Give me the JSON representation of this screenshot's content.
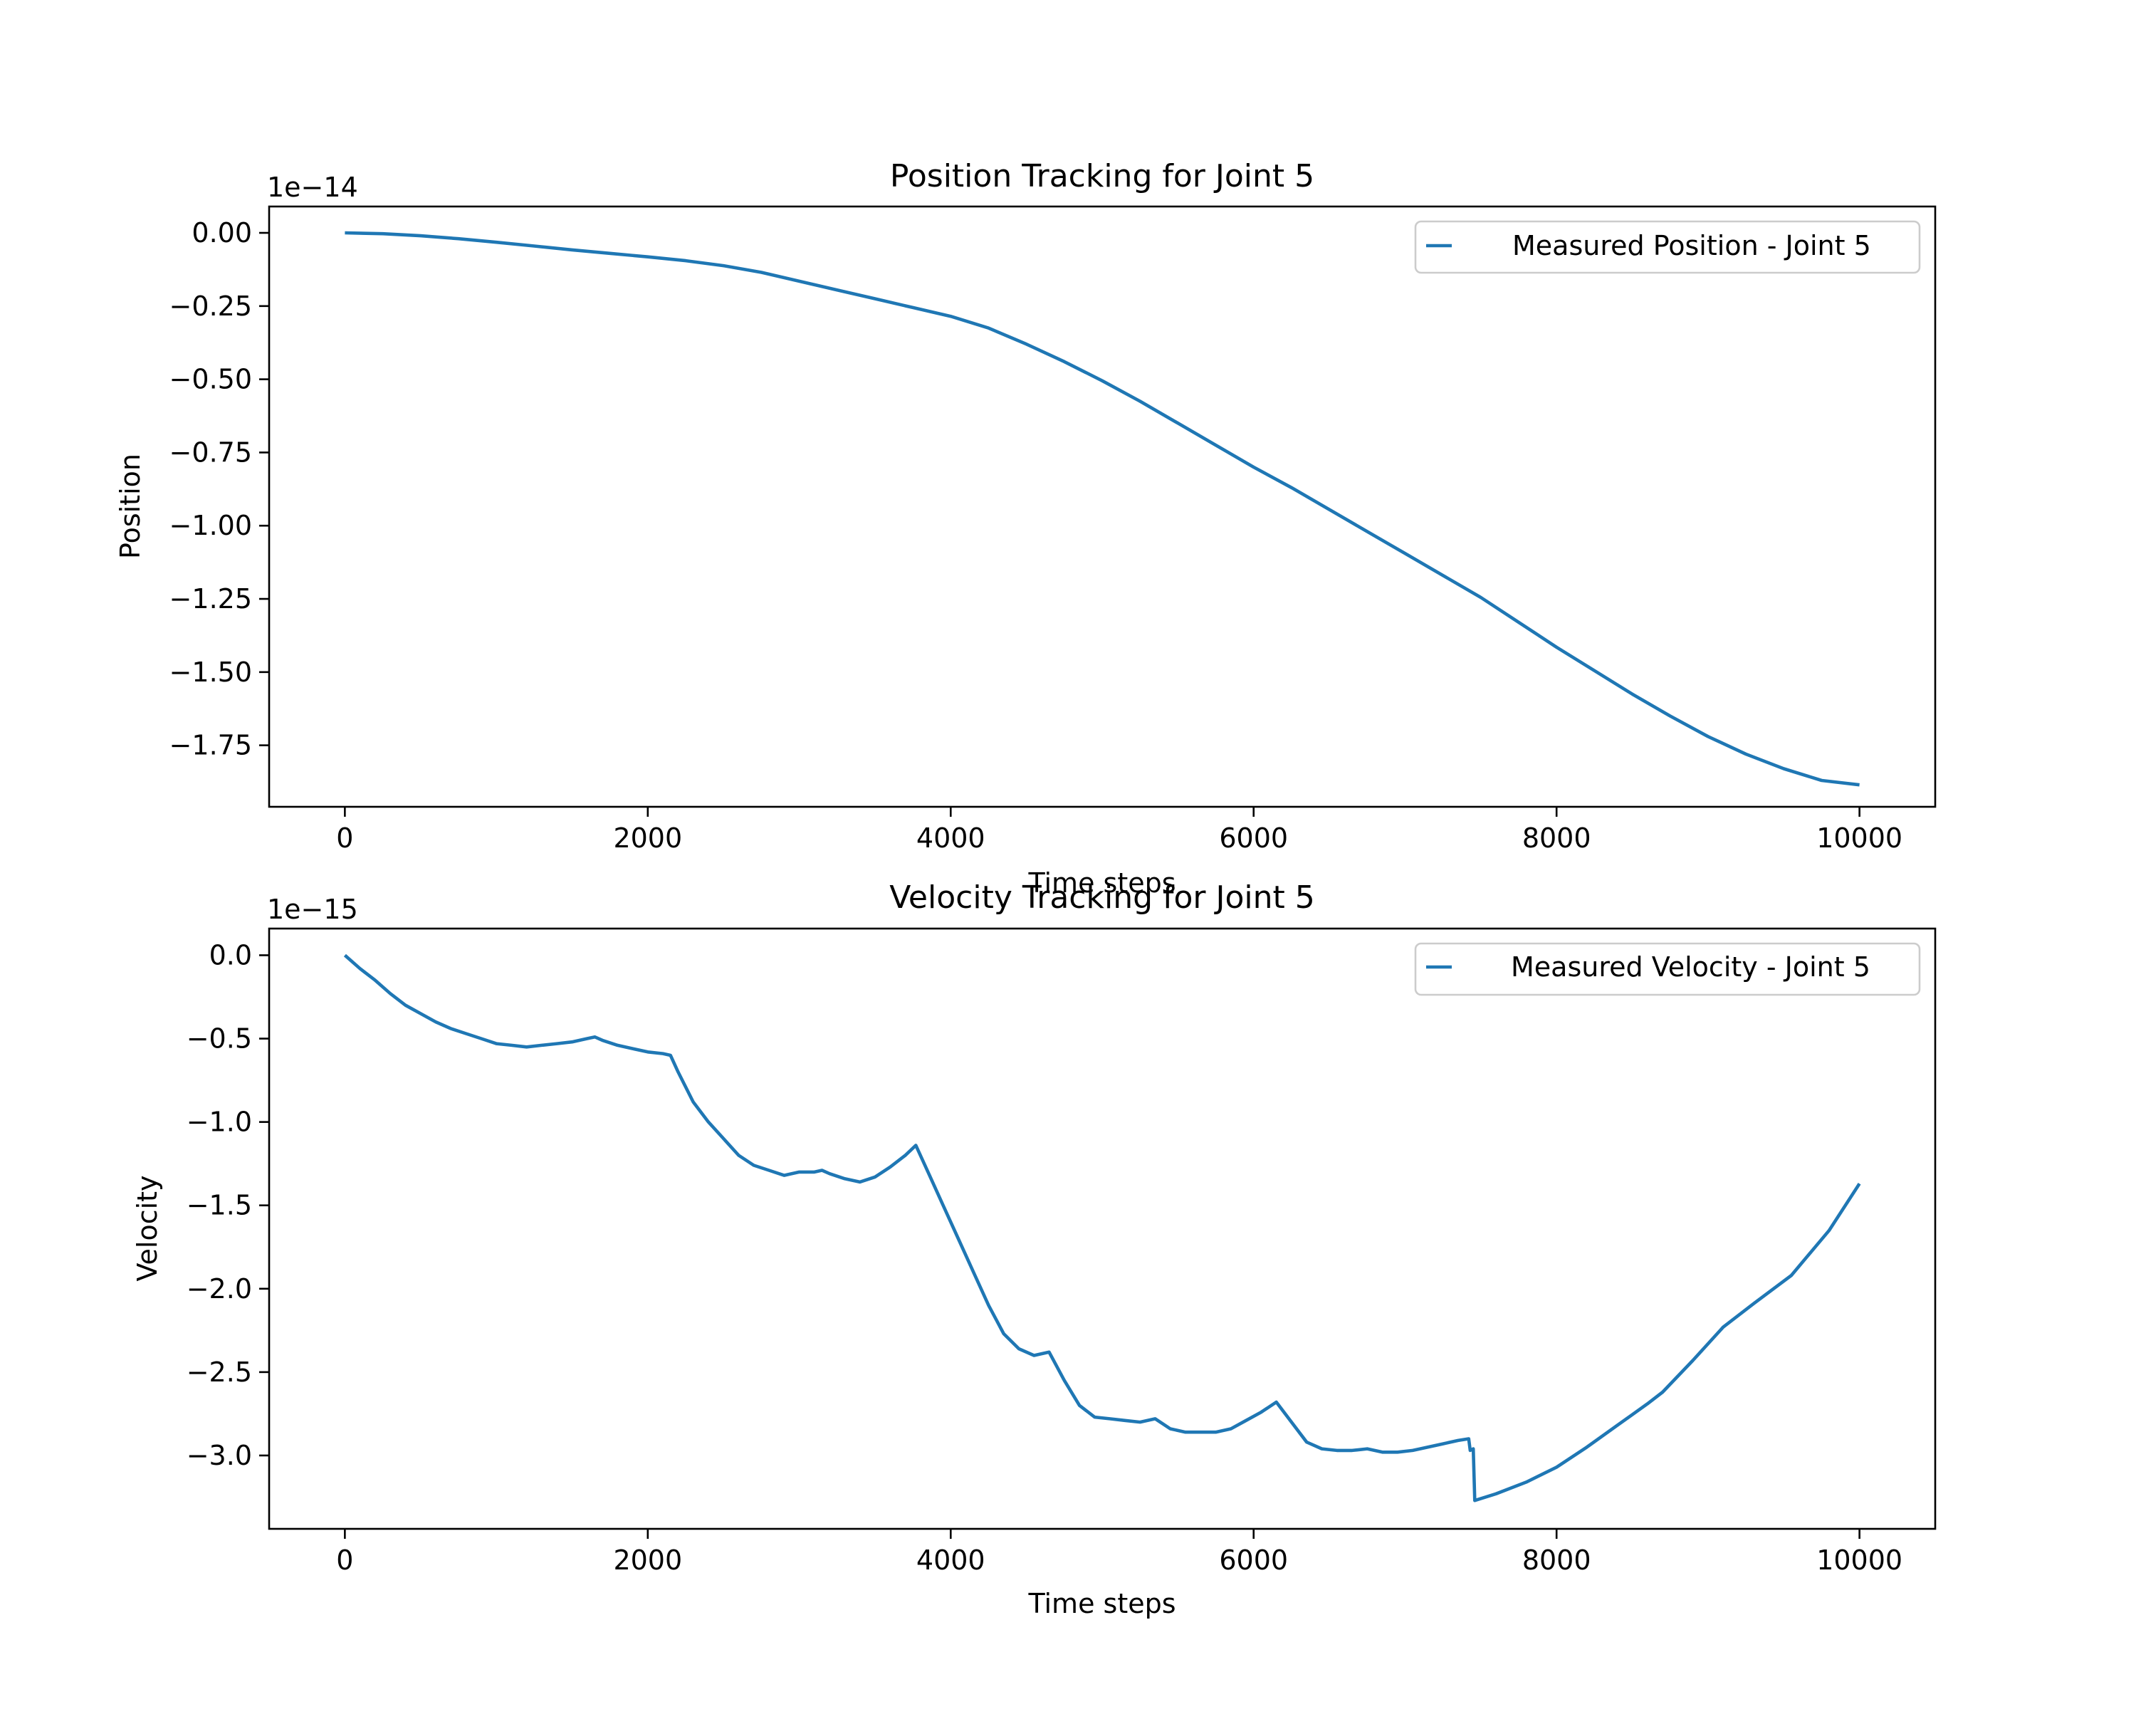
{
  "colors": {
    "series": "#1f77b4",
    "axes": "#000000",
    "legend_border": "#cccccc"
  },
  "chart_data": [
    {
      "type": "line",
      "title": "Position Tracking for Joint 5",
      "xlabel": "Time steps",
      "ylabel": "Position",
      "offset_label": "1e−14",
      "scale_exponent": -14,
      "legend_position": "top-right",
      "grid": false,
      "xlim": [
        -500,
        10500
      ],
      "ylim": [
        -1.96,
        0.09
      ],
      "x_ticks": [
        0,
        2000,
        4000,
        6000,
        8000,
        10000
      ],
      "x_tick_labels": [
        "0",
        "2000",
        "4000",
        "6000",
        "8000",
        "10000"
      ],
      "y_ticks": [
        0,
        -0.25,
        -0.5,
        -0.75,
        -1.0,
        -1.25,
        -1.5,
        -1.75
      ],
      "y_tick_labels": [
        "0.00",
        "−0.25",
        "−0.50",
        "−0.75",
        "−1.00",
        "−1.25",
        "−1.50",
        "−1.75"
      ],
      "series": [
        {
          "name": "Measured Position - Joint 5",
          "x": [
            0,
            250,
            500,
            750,
            1000,
            1250,
            1500,
            1750,
            2000,
            2250,
            2500,
            2750,
            3000,
            3250,
            3500,
            3750,
            4000,
            4250,
            4500,
            4750,
            5000,
            5250,
            5500,
            5750,
            6000,
            6250,
            6500,
            6750,
            7000,
            7250,
            7500,
            7750,
            8000,
            8250,
            8500,
            8750,
            9000,
            9250,
            9500,
            9750,
            10000
          ],
          "y": [
            0.0,
            -0.003,
            -0.01,
            -0.02,
            -0.032,
            -0.045,
            -0.058,
            -0.07,
            -0.082,
            -0.095,
            -0.112,
            -0.135,
            -0.165,
            -0.195,
            -0.225,
            -0.255,
            -0.285,
            -0.325,
            -0.38,
            -0.44,
            -0.505,
            -0.575,
            -0.65,
            -0.725,
            -0.8,
            -0.87,
            -0.945,
            -1.02,
            -1.095,
            -1.17,
            -1.245,
            -1.33,
            -1.415,
            -1.495,
            -1.575,
            -1.65,
            -1.72,
            -1.78,
            -1.83,
            -1.87,
            -1.885
          ]
        }
      ]
    },
    {
      "type": "line",
      "title": "Velocity Tracking for Joint 5",
      "xlabel": "Time steps",
      "ylabel": "Velocity",
      "offset_label": "1e−15",
      "scale_exponent": -15,
      "legend_position": "top-right",
      "grid": false,
      "xlim": [
        -500,
        10500
      ],
      "ylim": [
        -3.44,
        0.16
      ],
      "x_ticks": [
        0,
        2000,
        4000,
        6000,
        8000,
        10000
      ],
      "x_tick_labels": [
        "0",
        "2000",
        "4000",
        "6000",
        "8000",
        "10000"
      ],
      "y_ticks": [
        0,
        -0.5,
        -1.0,
        -1.5,
        -2.0,
        -2.5,
        -3.0
      ],
      "y_tick_labels": [
        "0.0",
        "−0.5",
        "−1.0",
        "−1.5",
        "−2.0",
        "−2.5",
        "−3.0"
      ],
      "series": [
        {
          "name": "Measured Velocity - Joint 5",
          "x": [
            0,
            100,
            200,
            300,
            400,
            500,
            600,
            700,
            800,
            900,
            1000,
            1100,
            1200,
            1300,
            1400,
            1500,
            1600,
            1650,
            1700,
            1800,
            1900,
            2000,
            2100,
            2150,
            2200,
            2300,
            2400,
            2500,
            2600,
            2700,
            2800,
            2900,
            3000,
            3100,
            3150,
            3200,
            3300,
            3400,
            3500,
            3600,
            3700,
            3770,
            3850,
            3950,
            4050,
            4150,
            4250,
            4350,
            4450,
            4550,
            4650,
            4750,
            4850,
            4950,
            5050,
            5150,
            5250,
            5350,
            5450,
            5550,
            5650,
            5750,
            5850,
            5950,
            6050,
            6150,
            6250,
            6350,
            6450,
            6550,
            6650,
            6750,
            6850,
            6950,
            7050,
            7150,
            7250,
            7350,
            7420,
            7430,
            7450,
            7460,
            7600,
            7800,
            8000,
            8200,
            8400,
            8600,
            8700,
            8900,
            9100,
            9300,
            9550,
            9800,
            10000
          ],
          "y": [
            0.0,
            -0.08,
            -0.15,
            -0.23,
            -0.3,
            -0.35,
            -0.4,
            -0.44,
            -0.47,
            -0.5,
            -0.53,
            -0.54,
            -0.55,
            -0.54,
            -0.53,
            -0.52,
            -0.5,
            -0.49,
            -0.51,
            -0.54,
            -0.56,
            -0.58,
            -0.59,
            -0.6,
            -0.7,
            -0.88,
            -1.0,
            -1.1,
            -1.2,
            -1.26,
            -1.29,
            -1.32,
            -1.3,
            -1.3,
            -1.29,
            -1.31,
            -1.34,
            -1.36,
            -1.33,
            -1.27,
            -1.2,
            -1.14,
            -1.3,
            -1.5,
            -1.7,
            -1.9,
            -2.1,
            -2.27,
            -2.36,
            -2.4,
            -2.38,
            -2.55,
            -2.7,
            -2.77,
            -2.78,
            -2.79,
            -2.8,
            -2.78,
            -2.84,
            -2.86,
            -2.86,
            -2.86,
            -2.84,
            -2.79,
            -2.74,
            -2.68,
            -2.8,
            -2.92,
            -2.96,
            -2.97,
            -2.97,
            -2.96,
            -2.98,
            -2.98,
            -2.97,
            -2.95,
            -2.93,
            -2.91,
            -2.9,
            -2.97,
            -2.96,
            -3.27,
            -3.23,
            -3.16,
            -3.07,
            -2.95,
            -2.82,
            -2.69,
            -2.62,
            -2.43,
            -2.23,
            -2.09,
            -1.92,
            -1.65,
            -1.37
          ]
        }
      ]
    }
  ]
}
